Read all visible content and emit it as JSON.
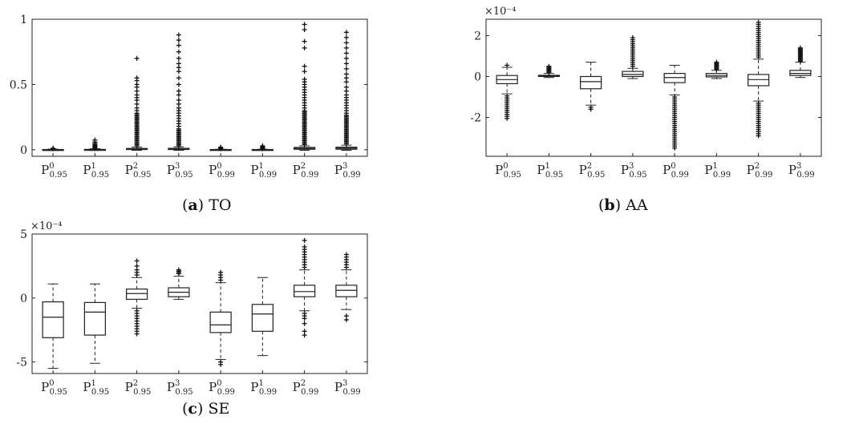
{
  "chart_data": [
    {
      "id": "a",
      "type": "boxplot",
      "caption_letter": "a",
      "caption_title": "TO",
      "exponent_label": "",
      "ylim": [
        -0.05,
        1.0
      ],
      "yticks": [
        0,
        0.5,
        1
      ],
      "ytick_labels": [
        "0",
        "0.5",
        "1"
      ],
      "categories": [
        {
          "sup": "0",
          "sub": "0.95"
        },
        {
          "sup": "1",
          "sub": "0.95"
        },
        {
          "sup": "2",
          "sub": "0.95"
        },
        {
          "sup": "3",
          "sub": "0.95"
        },
        {
          "sup": "0",
          "sub": "0.99"
        },
        {
          "sup": "1",
          "sub": "0.99"
        },
        {
          "sup": "2",
          "sub": "0.99"
        },
        {
          "sup": "3",
          "sub": "0.99"
        }
      ],
      "boxes": [
        {
          "wl": -0.005,
          "q1": -0.002,
          "med": 0.0,
          "q3": 0.002,
          "wh": 0.005,
          "outliers": [
            0.008,
            0.01,
            0.012
          ]
        },
        {
          "wl": -0.005,
          "q1": -0.002,
          "med": 0.0,
          "q3": 0.003,
          "wh": 0.008,
          "outliers": [
            0.01,
            0.015,
            0.02,
            0.025,
            0.03,
            0.035,
            0.04,
            0.05,
            0.06,
            0.075
          ]
        },
        {
          "wl": -0.004,
          "q1": 0.002,
          "med": 0.005,
          "q3": 0.01,
          "wh": 0.02,
          "outliers": [
            0.03,
            0.04,
            0.05,
            0.06,
            0.07,
            0.08,
            0.09,
            0.1,
            0.11,
            0.12,
            0.13,
            0.14,
            0.15,
            0.16,
            0.17,
            0.18,
            0.19,
            0.2,
            0.21,
            0.22,
            0.23,
            0.24,
            0.25,
            0.26,
            0.27,
            0.28,
            0.3,
            0.32,
            0.35,
            0.38,
            0.4,
            0.42,
            0.45,
            0.48,
            0.5,
            0.53,
            0.55,
            0.7
          ]
        },
        {
          "wl": -0.004,
          "q1": 0.002,
          "med": 0.006,
          "q3": 0.011,
          "wh": 0.022,
          "outliers": [
            0.03,
            0.04,
            0.05,
            0.06,
            0.07,
            0.08,
            0.09,
            0.1,
            0.11,
            0.12,
            0.13,
            0.14,
            0.15,
            0.16,
            0.18,
            0.2,
            0.22,
            0.24,
            0.26,
            0.28,
            0.3,
            0.32,
            0.35,
            0.38,
            0.42,
            0.45,
            0.5,
            0.55,
            0.6,
            0.63,
            0.66,
            0.7,
            0.75,
            0.8,
            0.84,
            0.88
          ]
        },
        {
          "wl": -0.004,
          "q1": -0.002,
          "med": 0.0,
          "q3": 0.002,
          "wh": 0.004,
          "outliers": [
            0.008,
            0.012,
            0.016,
            0.02
          ]
        },
        {
          "wl": -0.004,
          "q1": -0.002,
          "med": 0.0,
          "q3": 0.002,
          "wh": 0.004,
          "outliers": [
            0.008,
            0.012,
            0.016,
            0.02,
            0.024,
            0.03
          ]
        },
        {
          "wl": -0.004,
          "q1": 0.004,
          "med": 0.01,
          "q3": 0.018,
          "wh": 0.03,
          "outliers": [
            0.04,
            0.05,
            0.06,
            0.07,
            0.08,
            0.09,
            0.1,
            0.11,
            0.12,
            0.13,
            0.14,
            0.15,
            0.16,
            0.17,
            0.18,
            0.19,
            0.2,
            0.21,
            0.22,
            0.23,
            0.24,
            0.25,
            0.26,
            0.27,
            0.28,
            0.29,
            0.3,
            0.32,
            0.34,
            0.36,
            0.38,
            0.4,
            0.42,
            0.44,
            0.46,
            0.48,
            0.5,
            0.52,
            0.54,
            0.6,
            0.64,
            0.78,
            0.83,
            0.92,
            0.96
          ]
        },
        {
          "wl": -0.004,
          "q1": 0.004,
          "med": 0.012,
          "q3": 0.02,
          "wh": 0.035,
          "outliers": [
            0.045,
            0.055,
            0.065,
            0.075,
            0.085,
            0.095,
            0.105,
            0.115,
            0.125,
            0.135,
            0.145,
            0.155,
            0.165,
            0.175,
            0.185,
            0.195,
            0.205,
            0.215,
            0.225,
            0.235,
            0.245,
            0.255,
            0.265,
            0.28,
            0.3,
            0.32,
            0.34,
            0.36,
            0.38,
            0.4,
            0.42,
            0.45,
            0.48,
            0.52,
            0.55,
            0.58,
            0.62,
            0.66,
            0.7,
            0.74,
            0.78,
            0.82,
            0.86,
            0.9
          ]
        }
      ]
    },
    {
      "id": "b",
      "type": "boxplot",
      "caption_letter": "b",
      "caption_title": "AA",
      "exponent_label": "×10⁻⁴",
      "ylim": [
        -3.9,
        2.8
      ],
      "yticks": [
        -2,
        0,
        2
      ],
      "ytick_labels": [
        "-2",
        "0",
        "2"
      ],
      "categories": [
        {
          "sup": "0",
          "sub": "0.95"
        },
        {
          "sup": "1",
          "sub": "0.95"
        },
        {
          "sup": "2",
          "sub": "0.95"
        },
        {
          "sup": "3",
          "sub": "0.95"
        },
        {
          "sup": "0",
          "sub": "0.99"
        },
        {
          "sup": "1",
          "sub": "0.99"
        },
        {
          "sup": "2",
          "sub": "0.99"
        },
        {
          "sup": "3",
          "sub": "0.99"
        }
      ],
      "boxes": [
        {
          "wl": -0.85,
          "q1": -0.35,
          "med": -0.15,
          "q3": 0.05,
          "wh": 0.45,
          "outliers": [
            0.55,
            -0.95,
            -1.05,
            -1.15,
            -1.25,
            -1.35,
            -1.45,
            -1.55,
            -1.65,
            -1.75,
            -1.85,
            -1.95,
            -2.05
          ]
        },
        {
          "wl": -0.05,
          "q1": 0.0,
          "med": 0.03,
          "q3": 0.06,
          "wh": 0.15,
          "outliers": [
            0.2,
            0.25,
            0.3,
            0.35,
            0.4,
            0.45,
            0.5
          ]
        },
        {
          "wl": -1.4,
          "q1": -0.6,
          "med": -0.25,
          "q3": 0.0,
          "wh": 0.7,
          "outliers": [
            -1.5,
            -1.6
          ]
        },
        {
          "wl": -0.1,
          "q1": 0.0,
          "med": 0.1,
          "q3": 0.25,
          "wh": 0.4,
          "outliers": [
            0.5,
            0.6,
            0.7,
            0.8,
            0.9,
            1.0,
            1.1,
            1.2,
            1.3,
            1.4,
            1.5,
            1.6,
            1.7,
            1.8,
            1.9
          ]
        },
        {
          "wl": -0.9,
          "q1": -0.3,
          "med": -0.05,
          "q3": 0.15,
          "wh": 0.55,
          "outliers": [
            -1.0,
            -1.1,
            -1.2,
            -1.3,
            -1.4,
            -1.5,
            -1.6,
            -1.7,
            -1.8,
            -1.9,
            -2.0,
            -2.1,
            -2.2,
            -2.3,
            -2.4,
            -2.5,
            -2.6,
            -2.7,
            -2.8,
            -2.9,
            -3.0,
            -3.1,
            -3.2,
            -3.3,
            -3.4,
            -3.5
          ]
        },
        {
          "wl": -0.1,
          "q1": -0.02,
          "med": 0.05,
          "q3": 0.15,
          "wh": 0.3,
          "outliers": [
            0.35,
            0.4,
            0.45,
            0.5,
            0.55,
            0.6,
            0.65,
            0.7
          ]
        },
        {
          "wl": -1.2,
          "q1": -0.45,
          "med": -0.15,
          "q3": 0.1,
          "wh": 0.85,
          "outliers": [
            -1.3,
            -1.4,
            -1.5,
            -1.6,
            -1.7,
            -1.8,
            -1.9,
            -2.0,
            -2.1,
            -2.2,
            -2.3,
            -2.4,
            -2.5,
            -2.6,
            -2.7,
            -2.8,
            -2.9,
            0.95,
            1.05,
            1.15,
            1.25,
            1.35,
            1.45,
            1.55,
            1.65,
            1.75,
            1.85,
            1.95,
            2.05,
            2.15,
            2.25,
            2.35,
            2.45,
            2.55,
            2.65
          ]
        },
        {
          "wl": -0.05,
          "q1": 0.05,
          "med": 0.15,
          "q3": 0.3,
          "wh": 0.7,
          "outliers": [
            0.75,
            0.8,
            0.85,
            0.9,
            0.95,
            1.0,
            1.05,
            1.1,
            1.15,
            1.2,
            1.25,
            1.3,
            1.35,
            1.4
          ]
        }
      ]
    },
    {
      "id": "c",
      "type": "boxplot",
      "caption_letter": "c",
      "caption_title": "SE",
      "exponent_label": "×10⁻⁴",
      "ylim": [
        -5.9,
        5.0
      ],
      "yticks": [
        -5,
        0,
        5
      ],
      "ytick_labels": [
        "-5",
        "0",
        "5"
      ],
      "categories": [
        {
          "sup": "0",
          "sub": "0.95"
        },
        {
          "sup": "1",
          "sub": "0.95"
        },
        {
          "sup": "2",
          "sub": "0.95"
        },
        {
          "sup": "3",
          "sub": "0.95"
        },
        {
          "sup": "0",
          "sub": "0.99"
        },
        {
          "sup": "1",
          "sub": "0.99"
        },
        {
          "sup": "2",
          "sub": "0.99"
        },
        {
          "sup": "3",
          "sub": "0.99"
        }
      ],
      "boxes": [
        {
          "wl": -5.5,
          "q1": -3.1,
          "med": -1.5,
          "q3": -0.3,
          "wh": 1.1,
          "outliers": []
        },
        {
          "wl": -5.1,
          "q1": -2.9,
          "med": -1.1,
          "q3": -0.35,
          "wh": 1.1,
          "outliers": []
        },
        {
          "wl": -0.8,
          "q1": -0.1,
          "med": 0.35,
          "q3": 0.7,
          "wh": 1.6,
          "outliers": [
            1.8,
            2.0,
            2.2,
            2.5,
            2.9,
            -1.0,
            -1.2,
            -1.4,
            -1.6,
            -1.8,
            -2.0,
            -2.2,
            -2.4,
            -2.6,
            -2.8
          ]
        },
        {
          "wl": -0.1,
          "q1": 0.1,
          "med": 0.45,
          "q3": 0.8,
          "wh": 1.7,
          "outliers": [
            1.9,
            2.0,
            2.1,
            2.2
          ]
        },
        {
          "wl": -4.8,
          "q1": -2.7,
          "med": -2.1,
          "q3": -1.1,
          "wh": 1.2,
          "outliers": [
            1.4,
            1.6,
            1.8,
            2.0,
            -5.0,
            -5.2
          ]
        },
        {
          "wl": -4.5,
          "q1": -2.6,
          "med": -1.25,
          "q3": -0.5,
          "wh": 1.6,
          "outliers": []
        },
        {
          "wl": -1.0,
          "q1": 0.1,
          "med": 0.5,
          "q3": 1.0,
          "wh": 2.2,
          "outliers": [
            2.4,
            2.6,
            2.8,
            3.0,
            3.2,
            3.4,
            3.6,
            3.8,
            4.0,
            4.5,
            -1.2,
            -1.4,
            -1.6,
            -2.0,
            -2.6,
            -2.9
          ]
        },
        {
          "wl": -0.9,
          "q1": 0.1,
          "med": 0.6,
          "q3": 1.0,
          "wh": 2.2,
          "outliers": [
            2.4,
            2.6,
            2.8,
            3.0,
            3.2,
            3.4,
            -1.4,
            -1.7
          ]
        }
      ]
    }
  ]
}
